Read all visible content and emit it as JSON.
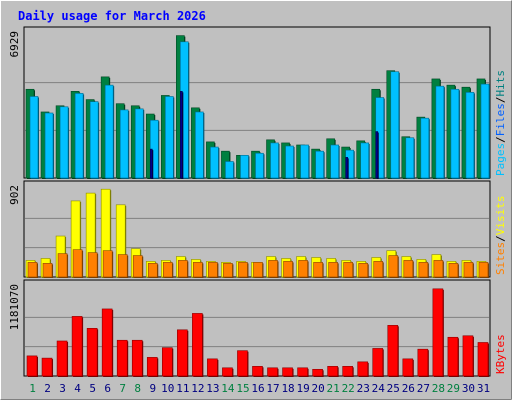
{
  "chart_data": [
    {
      "type": "bar",
      "title": "Daily usage for March 2026",
      "categories": [
        "1",
        "2",
        "3",
        "4",
        "5",
        "6",
        "7",
        "8",
        "9",
        "10",
        "11",
        "12",
        "13",
        "14",
        "15",
        "16",
        "17",
        "18",
        "19",
        "20",
        "21",
        "22",
        "23",
        "24",
        "25",
        "26",
        "27",
        "28",
        "29",
        "30",
        "31"
      ],
      "weekend_days": [
        "1",
        "7",
        "8",
        "14",
        "15",
        "21",
        "22",
        "28",
        "29"
      ],
      "ytick": "6929",
      "ylim": [
        0,
        6929
      ],
      "legend": [
        "Pages",
        "Files",
        "Hits"
      ],
      "series": [
        {
          "name": "Hits",
          "color": "#008040",
          "values": [
            4300,
            3200,
            3500,
            4200,
            3800,
            4900,
            3600,
            3500,
            3100,
            4000,
            6900,
            3400,
            1750,
            1300,
            1100,
            1300,
            1850,
            1700,
            1600,
            1400,
            1900,
            1500,
            1800,
            4300,
            5200,
            2000,
            2950,
            4800,
            4500,
            4400,
            4800
          ]
        },
        {
          "name": "Files",
          "color": "#00c0ff",
          "values": [
            3950,
            3150,
            3450,
            4100,
            3700,
            4500,
            3300,
            3350,
            2800,
            3950,
            6600,
            3200,
            1500,
            800,
            1100,
            1200,
            1700,
            1550,
            1600,
            1300,
            1600,
            1350,
            1700,
            3900,
            5150,
            1950,
            2900,
            4450,
            4300,
            4150,
            4550
          ]
        },
        {
          "name": "Pages",
          "color": "#00008b",
          "values": [
            0,
            0,
            0,
            0,
            0,
            0,
            0,
            0,
            1400,
            0,
            4200,
            0,
            0,
            0,
            0,
            0,
            0,
            0,
            0,
            0,
            0,
            1000,
            0,
            2250,
            0,
            0,
            0,
            0,
            0,
            0,
            0
          ]
        }
      ]
    },
    {
      "type": "bar",
      "categories": [
        "1",
        "2",
        "3",
        "4",
        "5",
        "6",
        "7",
        "8",
        "9",
        "10",
        "11",
        "12",
        "13",
        "14",
        "15",
        "16",
        "17",
        "18",
        "19",
        "20",
        "21",
        "22",
        "23",
        "24",
        "25",
        "26",
        "27",
        "28",
        "29",
        "30",
        "31"
      ],
      "ytick": "902",
      "ylim": [
        0,
        902
      ],
      "legend": [
        "Sites",
        "Visits"
      ],
      "series": [
        {
          "name": "Visits",
          "color": "#ffff00",
          "values": [
            170,
            190,
            420,
            780,
            860,
            900,
            740,
            290,
            160,
            170,
            210,
            180,
            160,
            150,
            160,
            150,
            210,
            190,
            210,
            200,
            190,
            170,
            160,
            200,
            270,
            210,
            180,
            230,
            160,
            170,
            160
          ]
        },
        {
          "name": "Sites",
          "color": "#ff8000",
          "values": [
            150,
            140,
            240,
            280,
            250,
            270,
            230,
            220,
            140,
            150,
            170,
            150,
            150,
            140,
            150,
            150,
            170,
            160,
            170,
            150,
            150,
            150,
            140,
            160,
            220,
            170,
            150,
            170,
            140,
            150,
            150
          ]
        }
      ]
    },
    {
      "type": "bar",
      "categories": [
        "1",
        "2",
        "3",
        "4",
        "5",
        "6",
        "7",
        "8",
        "9",
        "10",
        "11",
        "12",
        "13",
        "14",
        "15",
        "16",
        "17",
        "18",
        "19",
        "20",
        "21",
        "22",
        "23",
        "24",
        "25",
        "26",
        "27",
        "28",
        "29",
        "30",
        "31"
      ],
      "ytick": "1181070",
      "ylim": [
        0,
        1181070
      ],
      "legend": [
        "KBytes"
      ],
      "series": [
        {
          "name": "KBytes",
          "color": "#ff0000",
          "values": [
            270000,
            240000,
            470000,
            800000,
            640000,
            900000,
            480000,
            480000,
            250000,
            380000,
            620000,
            840000,
            230000,
            110000,
            340000,
            130000,
            110000,
            110000,
            110000,
            90000,
            130000,
            130000,
            190000,
            370000,
            680000,
            230000,
            360000,
            1170000,
            520000,
            540000,
            450000
          ]
        }
      ]
    }
  ]
}
